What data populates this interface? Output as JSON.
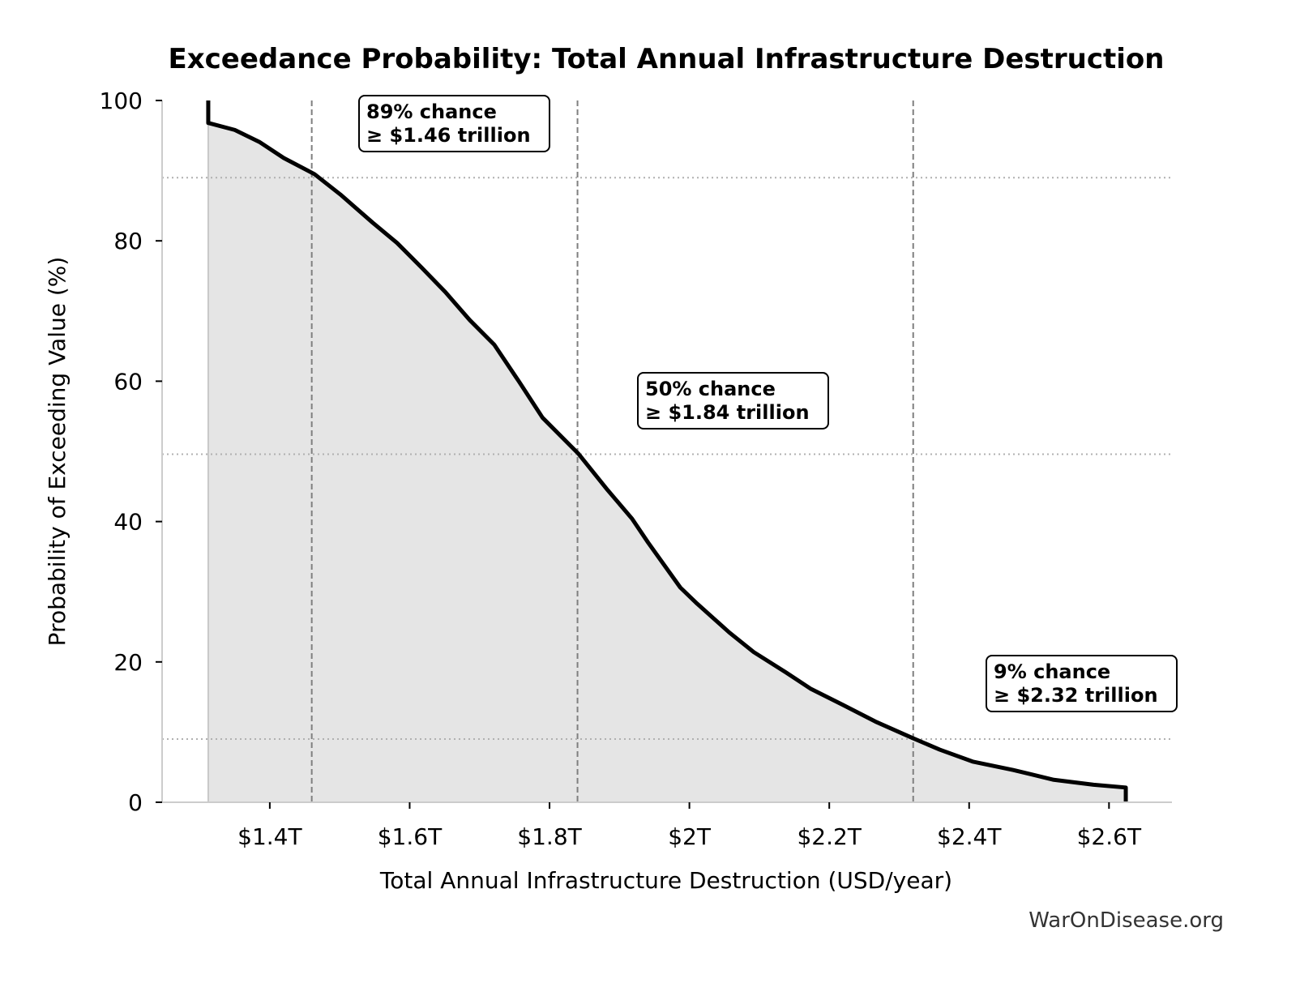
{
  "chart_data": {
    "type": "area",
    "title": "Exceedance Probability: Total Annual Infrastructure Destruction",
    "xlabel": "Total Annual Infrastructure Destruction (USD/year)",
    "ylabel": "Probability of Exceeding Value (%)",
    "xlim": [
      1.246,
      2.69
    ],
    "ylim": [
      0,
      100
    ],
    "x_unit": "trillion USD",
    "x_ticks": [
      1.4,
      1.6,
      1.8,
      2.0,
      2.2,
      2.4,
      2.6
    ],
    "x_tick_labels": [
      "$1.4T",
      "$1.6T",
      "$1.8T",
      "$2T",
      "$2.2T",
      "$2.4T",
      "$2.6T"
    ],
    "y_ticks": [
      0,
      20,
      40,
      60,
      80,
      100
    ],
    "y_tick_labels": [
      "0",
      "20",
      "40",
      "60",
      "80",
      "100"
    ],
    "grid": false,
    "series": [
      {
        "x": [
          1.312,
          1.312,
          1.35,
          1.385,
          1.42,
          1.464,
          1.501,
          1.547,
          1.582,
          1.617,
          1.651,
          1.686,
          1.721,
          1.756,
          1.79,
          1.841,
          1.883,
          1.918,
          1.941,
          1.987,
          2.011,
          2.057,
          2.092,
          2.138,
          2.173,
          2.219,
          2.266,
          2.318,
          2.358,
          2.405,
          2.463,
          2.521,
          2.578,
          2.624,
          2.624
        ],
        "y": [
          100,
          96.8,
          95.8,
          94.1,
          91.8,
          89.5,
          86.6,
          82.6,
          79.7,
          76.2,
          72.7,
          68.7,
          65.2,
          60.0,
          54.8,
          49.7,
          44.5,
          40.4,
          37.0,
          30.6,
          28.3,
          24.2,
          21.4,
          18.5,
          16.2,
          13.9,
          11.5,
          9.2,
          7.5,
          5.8,
          4.6,
          3.2,
          2.5,
          2.1,
          0
        ]
      }
    ],
    "reference_lines": [
      {
        "probability": 89,
        "value": 1.46,
        "label_line1": "89% chance",
        "label_line2": "≥ $1.46 trillion"
      },
      {
        "probability": 49.6,
        "value": 1.84,
        "label_line1": "50% chance",
        "label_line2": "≥ $1.84 trillion"
      },
      {
        "probability": 9,
        "value": 2.32,
        "label_line1": "9% chance",
        "label_line2": "≥ $2.32 trillion"
      }
    ],
    "colors": {
      "line": "#000000",
      "fill": "#e5e5e5",
      "reference": "#7f7f7f",
      "hgrid": "#b0b0b0"
    }
  },
  "watermark": "WarOnDisease.org"
}
